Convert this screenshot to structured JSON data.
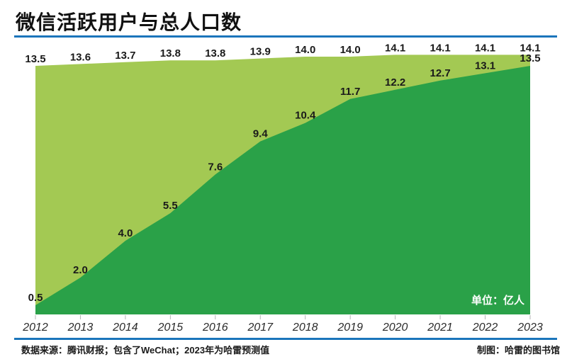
{
  "header": {
    "title": "微信活跃用户与总人口数"
  },
  "chart_data": {
    "type": "area",
    "title": "微信活跃用户与总人口数",
    "unit_label": "单位：亿人",
    "categories": [
      "2012",
      "2013",
      "2014",
      "2015",
      "2016",
      "2017",
      "2018",
      "2019",
      "2020",
      "2021",
      "2022",
      "2023"
    ],
    "series": [
      {
        "name": "总人口数",
        "values": [
          13.5,
          13.6,
          13.7,
          13.8,
          13.8,
          13.9,
          14.0,
          14.0,
          14.1,
          14.1,
          14.1,
          14.1
        ],
        "color": "#a3c953"
      },
      {
        "name": "微信活跃用户",
        "values": [
          0.5,
          2.0,
          4.0,
          5.5,
          7.6,
          9.4,
          10.4,
          11.7,
          12.2,
          12.7,
          13.1,
          13.5
        ],
        "color": "#2aa148"
      }
    ],
    "ylim": [
      0,
      14.5
    ],
    "xlabel": "",
    "ylabel": "",
    "grid": false,
    "legend_position": "none",
    "value_labels": true
  },
  "footer": {
    "source": "数据来源：腾讯财报；包含了WeChat；2023年为哈雷预测值",
    "credit": "制图：哈雷的图书馆"
  },
  "colors": {
    "accent_blue": "#1b75bb",
    "population_green": "#a3c953",
    "wechat_green": "#2aa148",
    "label_text": "#1a1a1a",
    "tick_gray": "#b5b5b5"
  }
}
